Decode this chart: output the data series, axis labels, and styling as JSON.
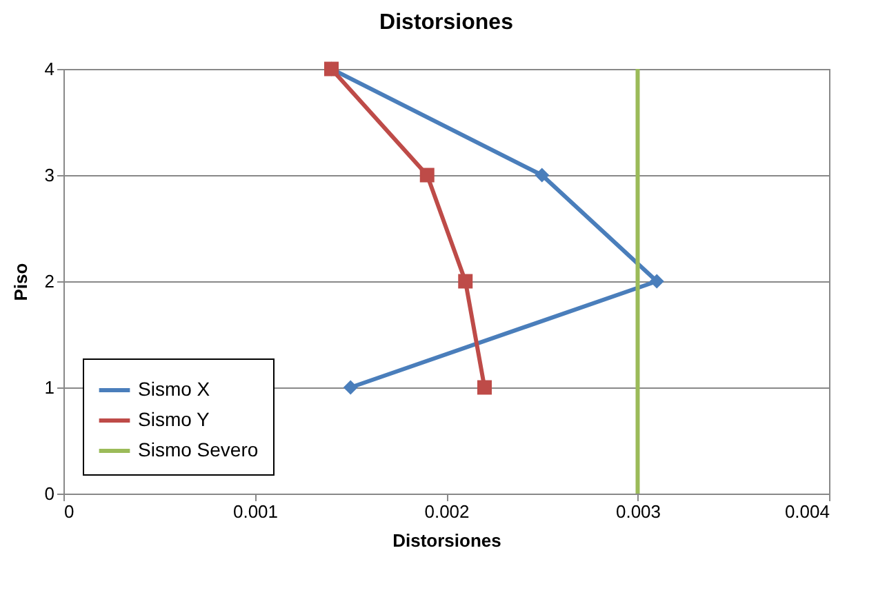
{
  "chart_data": {
    "type": "line",
    "title": "Distorsiones",
    "xlabel": "Distorsiones",
    "ylabel": "Piso",
    "xlim": [
      0,
      0.004
    ],
    "xticks": [
      0,
      0.001,
      0.002,
      0.003,
      0.004
    ],
    "ylim": [
      0,
      4
    ],
    "yticks": [
      0,
      1,
      2,
      3,
      4
    ],
    "grid": "y",
    "legend": "bottom left",
    "series": [
      {
        "name": "Sismo X",
        "color": "#4a7ebb",
        "marker": "diamond",
        "x": [
          0.0015,
          0.0031,
          0.0025,
          0.0014
        ],
        "values": [
          1,
          2,
          3,
          4
        ]
      },
      {
        "name": "Sismo Y",
        "color": "#be4b48",
        "marker": "square",
        "x": [
          0.0022,
          0.0021,
          0.0019,
          0.0014
        ],
        "values": [
          1,
          2,
          3,
          4
        ]
      },
      {
        "name": "Sismo Severo",
        "color": "#9bbb59",
        "marker": "none",
        "x": [
          0.003,
          0.003
        ],
        "values": [
          0,
          4
        ]
      }
    ]
  }
}
